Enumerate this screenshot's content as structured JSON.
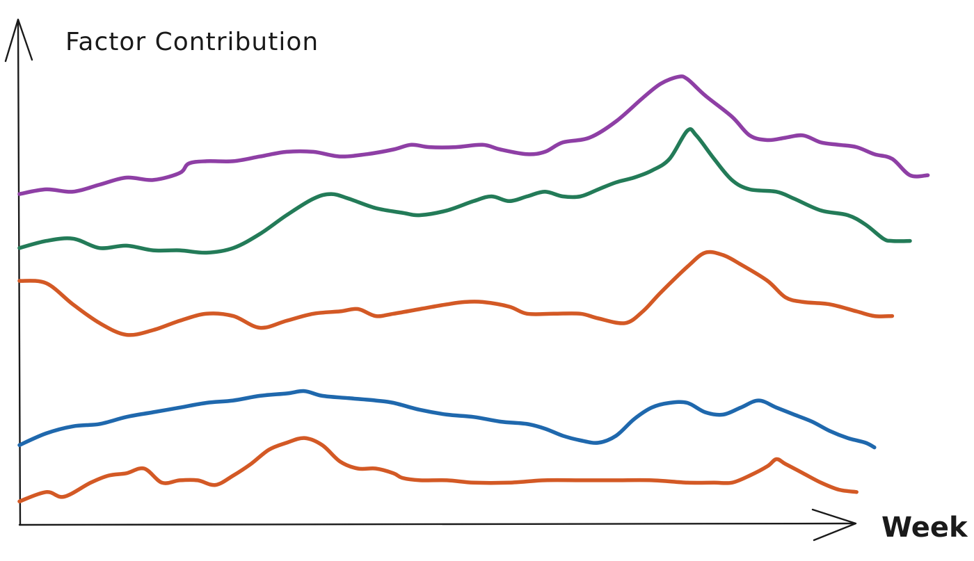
{
  "chart_data": {
    "type": "line",
    "title": "",
    "xlabel": "Week",
    "ylabel": "Factor Contribution",
    "grid": false,
    "legend": "none",
    "xlim": [
      0,
      100
    ],
    "ylim": [
      0,
      100
    ],
    "series": [
      {
        "color": "#8e3fa5",
        "points": [
          [
            0,
            70.5
          ],
          [
            3,
            71.5
          ],
          [
            6,
            71
          ],
          [
            9,
            72.5
          ],
          [
            12,
            74
          ],
          [
            15,
            73.5
          ],
          [
            18,
            75
          ],
          [
            19,
            77
          ],
          [
            21,
            77.5
          ],
          [
            24,
            77.5
          ],
          [
            27,
            78.5
          ],
          [
            30,
            79.5
          ],
          [
            33,
            79.5
          ],
          [
            36,
            78.5
          ],
          [
            39,
            79
          ],
          [
            42,
            80
          ],
          [
            44,
            81
          ],
          [
            46,
            80.5
          ],
          [
            49,
            80.5
          ],
          [
            52,
            81
          ],
          [
            54,
            80
          ],
          [
            57,
            79
          ],
          [
            59,
            79.5
          ],
          [
            61,
            81.5
          ],
          [
            64,
            82.5
          ],
          [
            67,
            86
          ],
          [
            70,
            91
          ],
          [
            72,
            94
          ],
          [
            74,
            95.5
          ],
          [
            75,
            95
          ],
          [
            77,
            91.5
          ],
          [
            80,
            87
          ],
          [
            82,
            83
          ],
          [
            84,
            82
          ],
          [
            86,
            82.5
          ],
          [
            88,
            83
          ],
          [
            90,
            81.5
          ],
          [
            92,
            81
          ],
          [
            94,
            80.5
          ],
          [
            96,
            79
          ],
          [
            98,
            78
          ],
          [
            100,
            74.5
          ],
          [
            102,
            74.5
          ]
        ]
      },
      {
        "color": "#237b58",
        "points": [
          [
            0,
            59
          ],
          [
            3,
            60.5
          ],
          [
            6,
            61
          ],
          [
            9,
            59
          ],
          [
            12,
            59.5
          ],
          [
            15,
            58.5
          ],
          [
            18,
            58.5
          ],
          [
            21,
            58
          ],
          [
            24,
            59
          ],
          [
            27,
            62
          ],
          [
            30,
            66
          ],
          [
            33,
            69.5
          ],
          [
            35,
            70.5
          ],
          [
            37,
            69.5
          ],
          [
            40,
            67.5
          ],
          [
            43,
            66.5
          ],
          [
            45,
            66
          ],
          [
            48,
            67
          ],
          [
            51,
            69
          ],
          [
            53,
            70
          ],
          [
            55,
            69
          ],
          [
            57,
            70
          ],
          [
            59,
            71
          ],
          [
            61,
            70
          ],
          [
            63,
            70
          ],
          [
            65,
            71.5
          ],
          [
            67,
            73
          ],
          [
            69,
            74
          ],
          [
            71,
            75.5
          ],
          [
            73,
            78
          ],
          [
            75,
            84
          ],
          [
            76,
            83
          ],
          [
            78,
            78
          ],
          [
            80,
            73.5
          ],
          [
            82,
            71.5
          ],
          [
            85,
            71
          ],
          [
            87,
            69.5
          ],
          [
            90,
            67
          ],
          [
            93,
            66
          ],
          [
            95,
            64
          ],
          [
            97,
            61
          ],
          [
            98,
            60.5
          ],
          [
            100,
            60.5
          ]
        ]
      },
      {
        "color": "#d35925",
        "points": [
          [
            0,
            52
          ],
          [
            3,
            51.5
          ],
          [
            6,
            47
          ],
          [
            9,
            43
          ],
          [
            12,
            40.5
          ],
          [
            15,
            41.5
          ],
          [
            18,
            43.5
          ],
          [
            21,
            45
          ],
          [
            24,
            44.5
          ],
          [
            27,
            42
          ],
          [
            30,
            43.5
          ],
          [
            33,
            45
          ],
          [
            36,
            45.5
          ],
          [
            38,
            46
          ],
          [
            40,
            44.5
          ],
          [
            42,
            45
          ],
          [
            45,
            46
          ],
          [
            48,
            47
          ],
          [
            50,
            47.5
          ],
          [
            52,
            47.5
          ],
          [
            55,
            46.5
          ],
          [
            57,
            45
          ],
          [
            60,
            45
          ],
          [
            63,
            45
          ],
          [
            65,
            44
          ],
          [
            68,
            43
          ],
          [
            70,
            45.5
          ],
          [
            72,
            49.5
          ],
          [
            75,
            55
          ],
          [
            77,
            58
          ],
          [
            79,
            57.5
          ],
          [
            81,
            55.5
          ],
          [
            84,
            52
          ],
          [
            86,
            48.5
          ],
          [
            88,
            47.5
          ],
          [
            91,
            47
          ],
          [
            94,
            45.5
          ],
          [
            96,
            44.5
          ],
          [
            98,
            44.5
          ]
        ]
      },
      {
        "color": "#1f68ad",
        "points": [
          [
            0,
            17
          ],
          [
            3,
            19.5
          ],
          [
            6,
            21
          ],
          [
            9,
            21.5
          ],
          [
            12,
            23
          ],
          [
            15,
            24
          ],
          [
            18,
            25
          ],
          [
            21,
            26
          ],
          [
            24,
            26.5
          ],
          [
            27,
            27.5
          ],
          [
            30,
            28
          ],
          [
            32,
            28.5
          ],
          [
            34,
            27.5
          ],
          [
            37,
            27
          ],
          [
            40,
            26.5
          ],
          [
            42,
            26
          ],
          [
            45,
            24.5
          ],
          [
            48,
            23.5
          ],
          [
            51,
            23
          ],
          [
            54,
            22
          ],
          [
            57,
            21.5
          ],
          [
            59,
            20.5
          ],
          [
            61,
            19
          ],
          [
            63,
            18
          ],
          [
            65,
            17.5
          ],
          [
            67,
            19
          ],
          [
            69,
            22.5
          ],
          [
            71,
            25
          ],
          [
            73,
            26
          ],
          [
            75,
            26
          ],
          [
            77,
            24
          ],
          [
            79,
            23.5
          ],
          [
            81,
            25
          ],
          [
            83,
            26.5
          ],
          [
            85,
            25
          ],
          [
            87,
            23.5
          ],
          [
            89,
            22
          ],
          [
            91,
            20
          ],
          [
            93,
            18.5
          ],
          [
            95,
            17.5
          ],
          [
            96,
            16.5
          ]
        ]
      },
      {
        "color": "#d35925",
        "points": [
          [
            0,
            5
          ],
          [
            3,
            7
          ],
          [
            5,
            6
          ],
          [
            8,
            9
          ],
          [
            10,
            10.5
          ],
          [
            12,
            11
          ],
          [
            14,
            12
          ],
          [
            16,
            9
          ],
          [
            18,
            9.5
          ],
          [
            20,
            9.5
          ],
          [
            22,
            8.5
          ],
          [
            24,
            10.5
          ],
          [
            26,
            13
          ],
          [
            28,
            16
          ],
          [
            30,
            17.5
          ],
          [
            32,
            18.5
          ],
          [
            34,
            17
          ],
          [
            36,
            13.5
          ],
          [
            38,
            12
          ],
          [
            40,
            12
          ],
          [
            42,
            11
          ],
          [
            43,
            10
          ],
          [
            45,
            9.5
          ],
          [
            48,
            9.5
          ],
          [
            51,
            9
          ],
          [
            55,
            9
          ],
          [
            59,
            9.5
          ],
          [
            63,
            9.5
          ],
          [
            67,
            9.5
          ],
          [
            71,
            9.5
          ],
          [
            75,
            9
          ],
          [
            78,
            9
          ],
          [
            80,
            9
          ],
          [
            82,
            10.5
          ],
          [
            84,
            12.5
          ],
          [
            85,
            14
          ],
          [
            86,
            13
          ],
          [
            88,
            11
          ],
          [
            90,
            9
          ],
          [
            92,
            7.5
          ],
          [
            94,
            7
          ]
        ]
      }
    ]
  }
}
